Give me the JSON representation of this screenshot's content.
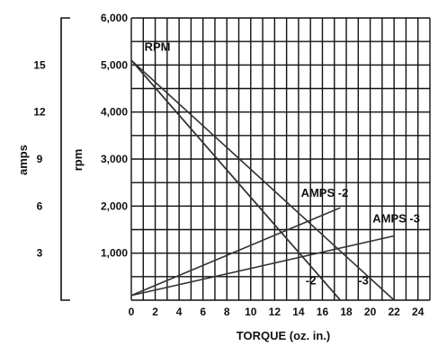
{
  "chart_data": {
    "type": "line",
    "title": "",
    "xlabel": "TORQUE (oz. in.)",
    "x_ticks": [
      "0",
      "2",
      "4",
      "6",
      "8",
      "10",
      "12",
      "14",
      "16",
      "18",
      "20",
      "22",
      "24"
    ],
    "xlim": [
      0,
      25
    ],
    "rpm_axis": {
      "label": "rpm",
      "ticks": [
        "1,000",
        "2,000",
        "3,000",
        "4,000",
        "5,000",
        "6,000"
      ],
      "ylim": [
        0,
        6000
      ]
    },
    "amps_axis": {
      "label": "amps",
      "ticks": [
        "3",
        "6",
        "9",
        "12",
        "15"
      ],
      "ylim": [
        0,
        18
      ]
    },
    "grid": true,
    "series": [
      {
        "name": "RPM",
        "axis": "rpm",
        "x": [
          0,
          17.5
        ],
        "y": [
          5100,
          0
        ]
      },
      {
        "name": "-2",
        "axis": "rpm",
        "x": [
          0,
          17.5
        ],
        "y": [
          5100,
          0
        ]
      },
      {
        "name": "-3",
        "axis": "rpm",
        "x": [
          0,
          22
        ],
        "y": [
          5100,
          0
        ]
      },
      {
        "name": "AMPS -2",
        "axis": "amps",
        "x": [
          0,
          17.5
        ],
        "y": [
          0.3,
          5.9
        ]
      },
      {
        "name": "AMPS -3",
        "axis": "amps",
        "x": [
          0,
          22
        ],
        "y": [
          0.3,
          4.1
        ]
      }
    ],
    "annotations": [
      {
        "text": "RPM",
        "x": 1.1,
        "y": 5300
      },
      {
        "text": "AMPS -2",
        "x": 14.2,
        "y": 2200
      },
      {
        "text": "AMPS -3",
        "x": 20.2,
        "y": 1650
      },
      {
        "text": "-2",
        "x": 14.6,
        "y": 330
      },
      {
        "text": "-3",
        "x": 19.0,
        "y": 330
      }
    ]
  }
}
